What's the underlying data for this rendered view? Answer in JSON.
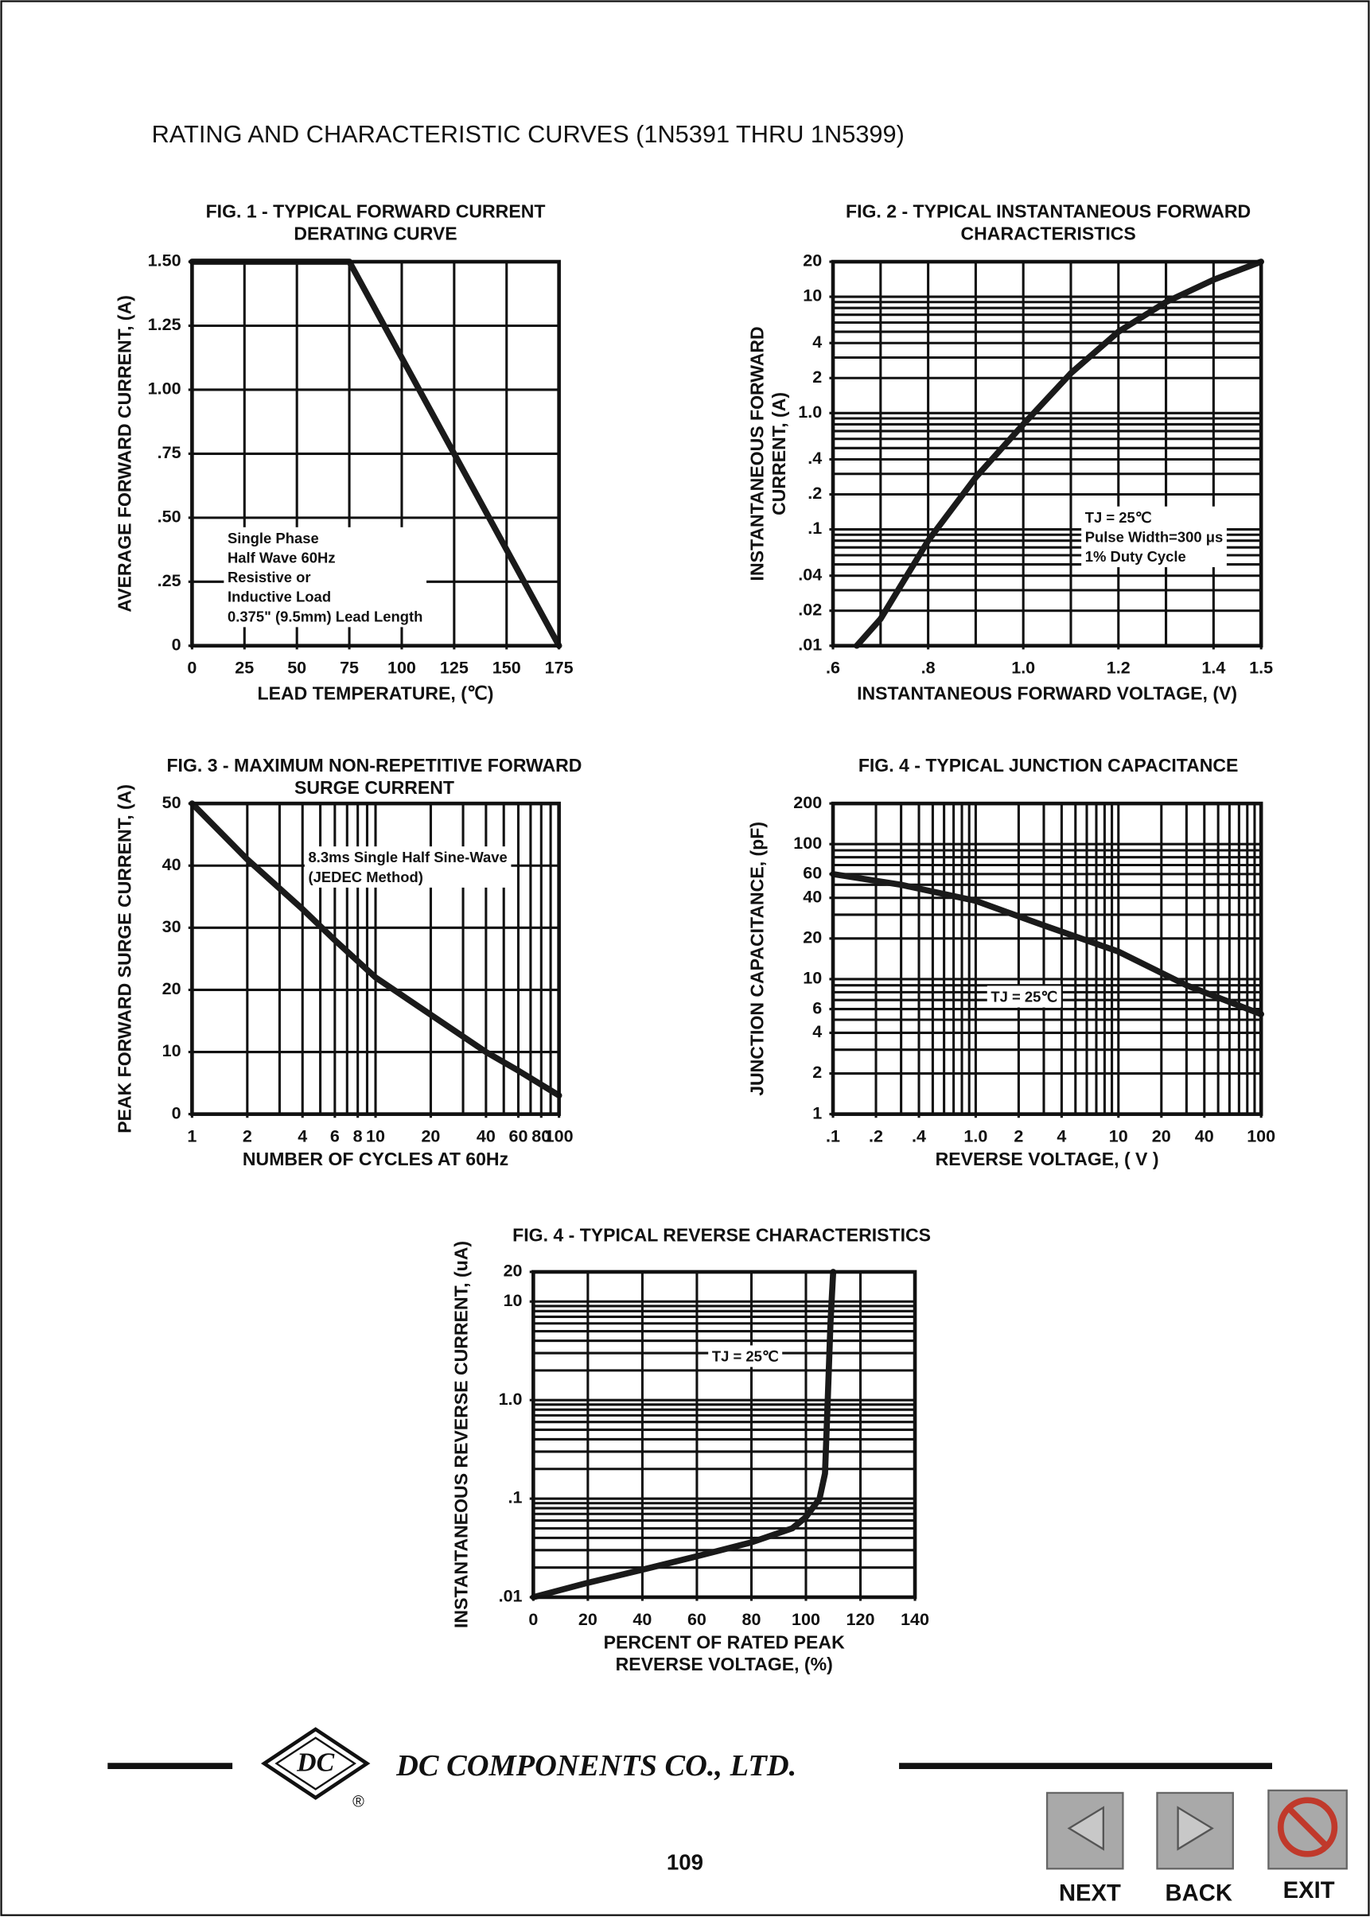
{
  "page_title": "RATING AND CHARACTERISTIC CURVES (1N5391 THRU 1N5399)",
  "chart_data": [
    {
      "type": "line",
      "title": [
        "FIG. 1 - TYPICAL FORWARD CURRENT",
        "DERATING CURVE"
      ],
      "xlabel": [
        "LEAD TEMPERATURE, (℃)"
      ],
      "ylabel": [
        "AVERAGE FORWARD  CURRENT, (A)"
      ],
      "annotation": [
        "Single Phase",
        "Half Wave 60Hz",
        "Resistive or",
        "Inductive Load",
        "0.375\" (9.5mm) Lead Length"
      ],
      "x": [
        0,
        75,
        175
      ],
      "values": [
        1.5,
        1.5,
        0
      ],
      "color": "#1a1a1a",
      "xlim": [
        0,
        175
      ],
      "xticks": [
        0,
        25,
        50,
        75,
        100,
        125,
        150,
        175
      ],
      "ylim": [
        0,
        1.5
      ],
      "yticks": [
        0,
        {
          "value": 0.25,
          "label": ".25"
        },
        {
          "value": 0.5,
          "label": ".50"
        },
        {
          "value": 0.75,
          "label": ".75"
        },
        {
          "value": 1,
          "label": "1.00"
        },
        {
          "value": 1.25,
          "label": "1.25"
        },
        {
          "value": 1.5,
          "label": "1.50"
        }
      ],
      "xgrid": [
        25,
        50,
        75,
        100,
        125,
        150
      ],
      "ygrid": [
        0.25,
        0.5,
        0.75,
        1,
        1.25
      ]
    },
    {
      "type": "line",
      "title": [
        "FIG. 2 - TYPICAL INSTANTANEOUS FORWARD",
        "CHARACTERISTICS"
      ],
      "xlabel": [
        "INSTANTANEOUS FORWARD VOLTAGE, (V)"
      ],
      "ylabel": [
        "INSTANTANEOUS FORWARD",
        "CURRENT, (A)"
      ],
      "annotation": [
        "TJ = 25℃",
        "Pulse Width=300 μs",
        "1% Duty Cycle"
      ],
      "x": [
        0.65,
        0.7,
        0.8,
        0.9,
        1.0,
        1.1,
        1.2,
        1.3,
        1.4,
        1.5
      ],
      "values": [
        0.01,
        0.017,
        0.08,
        0.28,
        0.8,
        2.2,
        5,
        9,
        14,
        20
      ],
      "color": "#1a1a1a",
      "xlim": [
        0.6,
        1.5
      ],
      "xticks": [
        {
          "value": 0.6,
          "label": ".6"
        },
        {
          "value": 0.8,
          "label": ".8"
        },
        {
          "value": 1,
          "label": "1.0"
        },
        1.2,
        1.4,
        1.5
      ],
      "yscale": "log",
      "ylim": [
        0.01,
        20
      ],
      "yticks": [
        {
          "value": 0.01,
          "label": ".01"
        },
        {
          "value": 0.02,
          "label": ".02"
        },
        {
          "value": 0.04,
          "label": ".04"
        },
        {
          "value": 0.1,
          "label": ".1"
        },
        {
          "value": 0.2,
          "label": ".2"
        },
        {
          "value": 0.4,
          "label": ".4"
        },
        {
          "value": 1,
          "label": "1.0"
        },
        2,
        4,
        10,
        20
      ],
      "xgrid": [
        0.7,
        0.8,
        0.9,
        1.0,
        1.1,
        1.2,
        1.3,
        1.4
      ],
      "ygrid": [
        0.02,
        0.03,
        0.04,
        0.05,
        0.06,
        0.07,
        0.08,
        0.09,
        0.1,
        0.2,
        0.3,
        0.4,
        0.5,
        0.6,
        0.7,
        0.8,
        0.9,
        1,
        2,
        3,
        4,
        5,
        6,
        7,
        8,
        9,
        10
      ]
    },
    {
      "type": "line",
      "title": [
        "FIG. 3 - MAXIMUM NON-REPETITIVE FORWARD",
        "SURGE CURRENT"
      ],
      "xlabel": [
        "NUMBER OF CYCLES AT 60Hz"
      ],
      "ylabel": [
        "PEAK FORWARD SURGE CURRENT, (A)"
      ],
      "annotation": [
        "8.3ms Single Half Sine-Wave",
        "(JEDEC Method)"
      ],
      "x": [
        1,
        2,
        4,
        6,
        10,
        20,
        40,
        60,
        100
      ],
      "values": [
        50,
        41,
        33,
        28,
        22,
        16,
        10,
        7,
        3
      ],
      "color": "#1a1a1a",
      "xscale": "log",
      "xlim": [
        1,
        100
      ],
      "xticks": [
        1,
        2,
        4,
        6,
        8,
        10,
        20,
        40,
        60,
        80,
        100
      ],
      "ylim": [
        0,
        50
      ],
      "yticks": [
        0,
        10,
        20,
        30,
        40,
        50
      ],
      "xgrid": [
        2,
        3,
        4,
        5,
        6,
        7,
        8,
        9,
        10,
        20,
        30,
        40,
        50,
        60,
        70,
        80,
        90
      ],
      "ygrid": [
        10,
        20,
        30,
        40
      ]
    },
    {
      "type": "line",
      "title": [
        "FIG. 4 - TYPICAL JUNCTION CAPACITANCE"
      ],
      "xlabel": [
        "REVERSE VOLTAGE, ( V )"
      ],
      "ylabel": [
        "JUNCTION CAPACITANCE, (pF)"
      ],
      "annotation": [
        "TJ = 25℃"
      ],
      "x": [
        0.1,
        0.3,
        1,
        3,
        10,
        30,
        100
      ],
      "values": [
        60,
        50,
        38,
        25,
        16,
        9,
        5.5
      ],
      "color": "#1a1a1a",
      "xscale": "log",
      "xlim": [
        0.1,
        100
      ],
      "xticks": [
        {
          "value": 0.1,
          "label": ".1"
        },
        {
          "value": 0.2,
          "label": ".2"
        },
        {
          "value": 0.4,
          "label": ".4"
        },
        {
          "value": 1,
          "label": "1.0"
        },
        2,
        4,
        10,
        20,
        40,
        100
      ],
      "yscale": "log",
      "ylim": [
        1,
        200
      ],
      "yticks": [
        1,
        2,
        4,
        6,
        10,
        20,
        40,
        60,
        100,
        200
      ],
      "xgrid": [
        0.2,
        0.3,
        0.4,
        0.5,
        0.6,
        0.7,
        0.8,
        0.9,
        1,
        2,
        3,
        4,
        5,
        6,
        7,
        8,
        9,
        10,
        20,
        30,
        40,
        50,
        60,
        70,
        80,
        90
      ],
      "ygrid": [
        2,
        3,
        4,
        5,
        6,
        7,
        8,
        9,
        10,
        20,
        30,
        40,
        50,
        60,
        70,
        80,
        90,
        100
      ]
    },
    {
      "type": "line",
      "title": [
        "FIG. 4 - TYPICAL REVERSE CHARACTERISTICS"
      ],
      "xlabel": [
        "PERCENT OF RATED PEAK",
        "REVERSE VOLTAGE, (%)"
      ],
      "ylabel": [
        "INSTANTANEOUS REVERSE CURRENT, (uA)"
      ],
      "annotation": [
        "TJ = 25℃"
      ],
      "x": [
        0,
        20,
        40,
        60,
        80,
        95,
        100,
        105,
        107,
        108,
        109,
        110
      ],
      "values": [
        0.01,
        0.014,
        0.019,
        0.026,
        0.036,
        0.05,
        0.065,
        0.1,
        0.18,
        1,
        6,
        20
      ],
      "color": "#1a1a1a",
      "xlim": [
        0,
        140
      ],
      "xticks": [
        0,
        20,
        40,
        60,
        80,
        100,
        120,
        140
      ],
      "yscale": "log",
      "ylim": [
        0.01,
        20
      ],
      "yticks": [
        {
          "value": 0.01,
          "label": ".01"
        },
        {
          "value": 0.1,
          "label": ".1"
        },
        {
          "value": 1,
          "label": "1.0"
        },
        10,
        20
      ],
      "xgrid": [
        20,
        40,
        60,
        80,
        100,
        120
      ],
      "ygrid": [
        0.02,
        0.03,
        0.04,
        0.05,
        0.06,
        0.07,
        0.08,
        0.09,
        0.1,
        0.2,
        0.3,
        0.4,
        0.5,
        0.6,
        0.7,
        0.8,
        0.9,
        1,
        2,
        3,
        4,
        5,
        6,
        7,
        8,
        9,
        10
      ]
    }
  ],
  "footer": {
    "logo": "DC",
    "registered": "®",
    "company": "DC COMPONENTS CO., LTD.",
    "page_number": "109"
  },
  "nav": {
    "next": "NEXT",
    "back": "BACK",
    "exit": "EXIT"
  }
}
